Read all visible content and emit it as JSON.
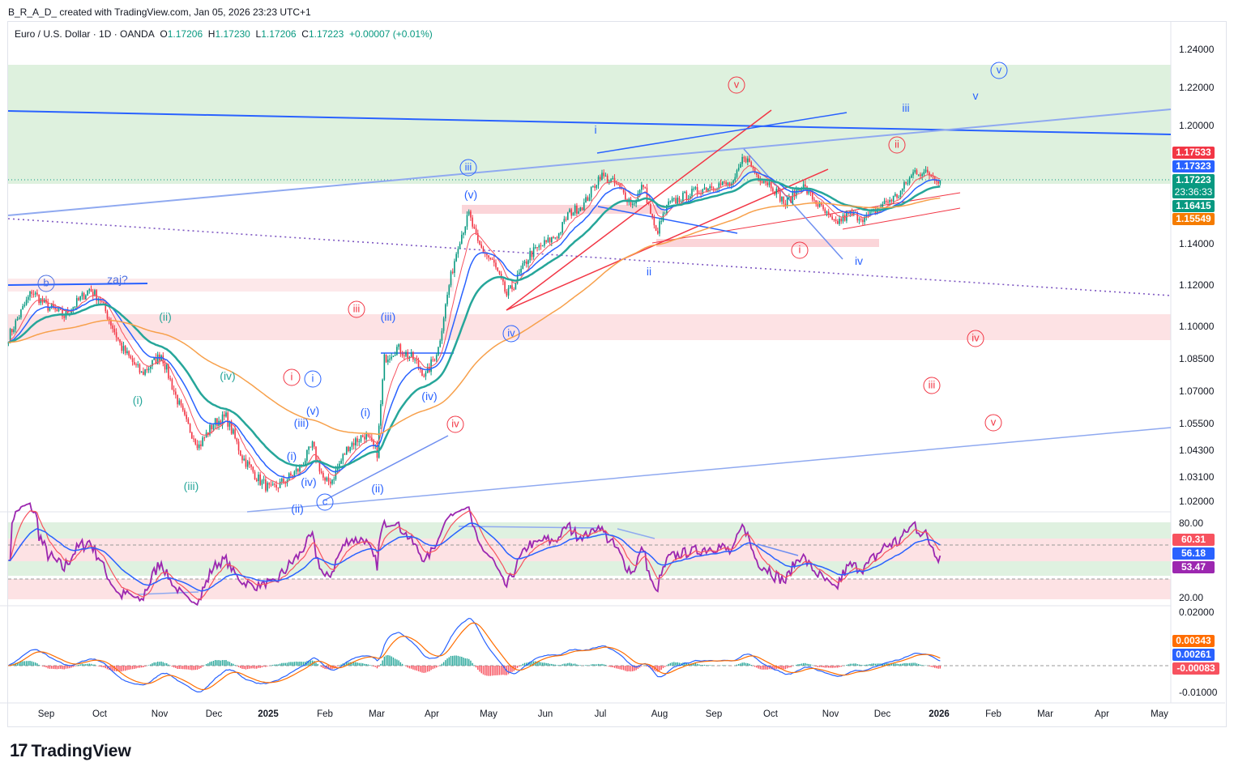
{
  "credit": "B_R_A_D_ created with TradingView.com, Jan 05, 2026 23:23 UTC+1",
  "legend": {
    "symbol": "Euro / U.S. Dollar · 1D · OANDA",
    "o_label": "O",
    "o": "1.17206",
    "h_label": "H",
    "h": "1.17230",
    "l_label": "L",
    "l": "1.17206",
    "c_label": "C",
    "c": "1.17223",
    "change": "+0.00007 (+0.01%)"
  },
  "colors": {
    "up": "#089981",
    "down": "#f23645",
    "ema_fast": "#f7525f",
    "ema_mid": "#2962ff",
    "ema_slow": "#26a69a",
    "ma_long": "#f7a04b",
    "rsi": "#9c27b0"
  },
  "price_tags": [
    {
      "value": "1.17533",
      "color": "#f23645"
    },
    {
      "value": "1.17323",
      "color": "#2962ff"
    },
    {
      "value": "1.17223",
      "sub": "23:36:33",
      "color": "#089981"
    },
    {
      "value": "1.16415",
      "color": "#089981"
    },
    {
      "value": "1.15549",
      "color": "#f57c00"
    }
  ],
  "rsi_tags": [
    {
      "value": "60.31",
      "color": "#f7525f"
    },
    {
      "value": "56.18",
      "color": "#2962ff"
    },
    {
      "value": "53.47",
      "color": "#9c27b0"
    }
  ],
  "macd_tags": [
    {
      "value": "0.00343",
      "color": "#ff6d00"
    },
    {
      "value": "0.00261",
      "color": "#2962ff"
    },
    {
      "value": "-0.00083",
      "color": "#f7525f"
    }
  ],
  "logo": "TradingView",
  "wave_labels": [
    "v",
    "ii",
    "i",
    "iv",
    "iii",
    "v",
    "iii",
    "i",
    "iv",
    "v",
    "v",
    "iii",
    "i",
    "iii",
    "(v)",
    "ii",
    "iv",
    "iv",
    "(iii)",
    "(iv)",
    "(i)",
    "(ii)",
    "i",
    "(v)",
    "(iii)",
    "(i)",
    "(iv)",
    "(ii)",
    "c",
    "b",
    "zaj?",
    "(ii)",
    "(iv)",
    "(i)",
    "(iii)"
  ],
  "chart_data": {
    "type": "candlestick",
    "title": "Euro / U.S. Dollar · 1D · OANDA",
    "x_unit": "days since 2024-09-01",
    "close_path": [
      [
        -21,
        1.095
      ],
      [
        -8,
        1.117
      ],
      [
        0,
        1.11
      ],
      [
        10,
        1.105
      ],
      [
        24,
        1.118
      ],
      [
        30,
        1.113
      ],
      [
        42,
        1.09
      ],
      [
        53,
        1.078
      ],
      [
        64,
        1.087
      ],
      [
        71,
        1.07
      ],
      [
        78,
        1.055
      ],
      [
        85,
        1.045
      ],
      [
        93,
        1.055
      ],
      [
        100,
        1.058
      ],
      [
        109,
        1.04
      ],
      [
        118,
        1.03
      ],
      [
        125,
        1.025
      ],
      [
        134,
        1.03
      ],
      [
        141,
        1.035
      ],
      [
        148,
        1.045
      ],
      [
        155,
        1.028
      ],
      [
        159,
        1.03
      ],
      [
        168,
        1.045
      ],
      [
        177,
        1.05
      ],
      [
        184,
        1.042
      ],
      [
        188,
        1.085
      ],
      [
        195,
        1.09
      ],
      [
        204,
        1.085
      ],
      [
        211,
        1.077
      ],
      [
        218,
        1.09
      ],
      [
        224,
        1.12
      ],
      [
        229,
        1.14
      ],
      [
        235,
        1.155
      ],
      [
        240,
        1.14
      ],
      [
        249,
        1.13
      ],
      [
        256,
        1.115
      ],
      [
        260,
        1.12
      ],
      [
        269,
        1.135
      ],
      [
        277,
        1.14
      ],
      [
        285,
        1.145
      ],
      [
        290,
        1.155
      ],
      [
        299,
        1.16
      ],
      [
        308,
        1.175
      ],
      [
        317,
        1.17
      ],
      [
        326,
        1.16
      ],
      [
        332,
        1.17
      ],
      [
        339,
        1.145
      ],
      [
        346,
        1.16
      ],
      [
        357,
        1.165
      ],
      [
        371,
        1.17
      ],
      [
        382,
        1.17
      ],
      [
        388,
        1.185
      ],
      [
        395,
        1.175
      ],
      [
        403,
        1.17
      ],
      [
        411,
        1.16
      ],
      [
        420,
        1.17
      ],
      [
        429,
        1.16
      ],
      [
        438,
        1.15
      ],
      [
        447,
        1.155
      ],
      [
        456,
        1.153
      ],
      [
        465,
        1.16
      ],
      [
        474,
        1.165
      ],
      [
        483,
        1.177
      ],
      [
        492,
        1.175
      ],
      [
        497,
        1.1722
      ]
    ],
    "price_axis_ticks": [
      "1.24000",
      "1.22000",
      "1.20000",
      "1.14000",
      "1.12000",
      "1.10000",
      "1.08500",
      "1.07000",
      "1.05500",
      "1.04300",
      "1.03100",
      "1.02000"
    ],
    "rsi_axis_ticks": [
      "80.00",
      "20.00"
    ],
    "macd_axis_ticks": [
      "0.02000",
      "-0.01000"
    ],
    "x_ticks": [
      "Sep",
      "Oct",
      "Nov",
      "Dec",
      "2025",
      "Feb",
      "Mar",
      "Apr",
      "May",
      "Jun",
      "Jul",
      "Aug",
      "Sep",
      "Oct",
      "Nov",
      "Dec",
      "2026",
      "Feb",
      "Mar",
      "Apr",
      "May"
    ],
    "last_price": 1.17223
  }
}
